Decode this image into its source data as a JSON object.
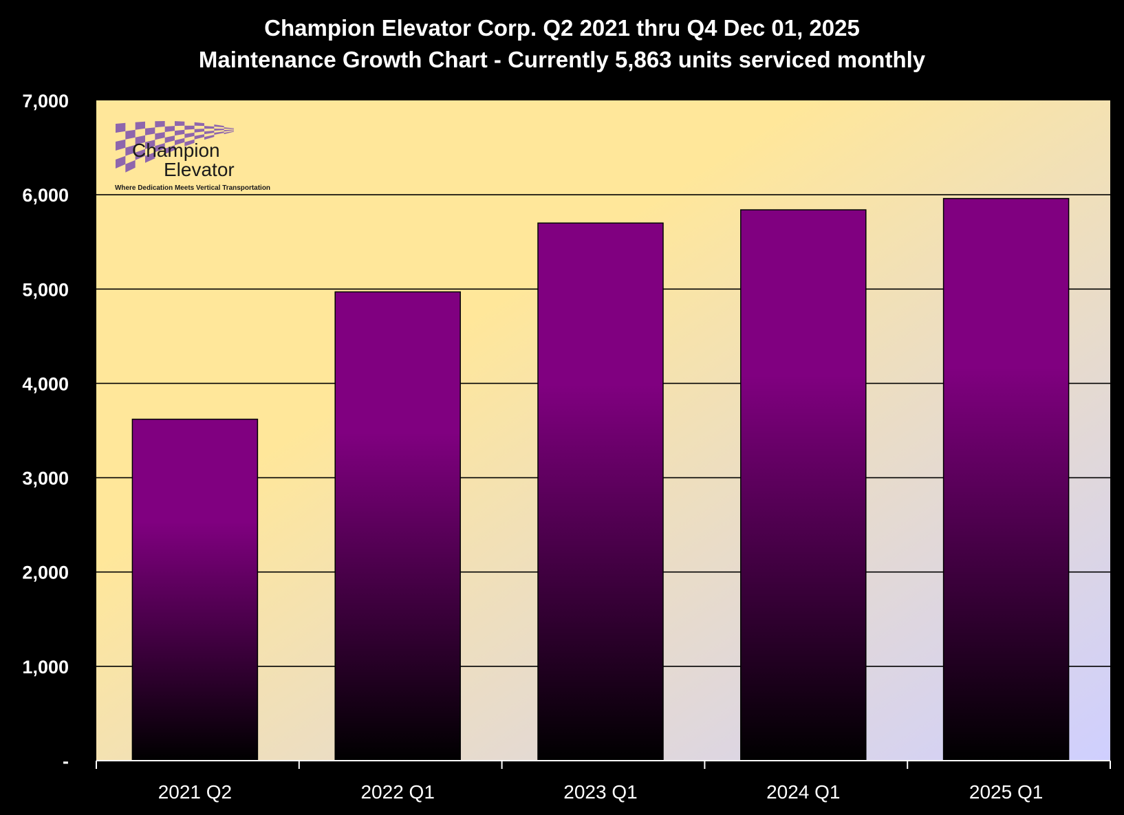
{
  "colors": {
    "background": "#000000",
    "plot_top_left": "#ffe79a",
    "plot_bottom_right": "#cfcfff",
    "bar_top": "#800080",
    "bar_bottom": "#000000",
    "gridline": "#000000",
    "logo_purple": "#7a4fb0"
  },
  "logo": {
    "word1": "Champion",
    "word2": "Elevator",
    "tagline": "Where Dedication Meets Vertical Transportation"
  },
  "chart_data": {
    "type": "bar",
    "title": "Champion Elevator  Corp.  Q2 2021 thru Q4 Dec 01, 2025",
    "subtitle": "Maintenance Growth Chart - Currently 5,863 units serviced monthly",
    "categories": [
      "2021 Q2",
      "2022 Q1",
      "2023 Q1",
      "2024 Q1",
      "2025 Q1"
    ],
    "values": [
      3620,
      4970,
      5700,
      5840,
      5960
    ],
    "ylim": [
      0,
      7000
    ],
    "yticks": [
      0,
      1000,
      2000,
      3000,
      4000,
      5000,
      6000,
      7000
    ],
    "ytick_labels": [
      "-",
      "1,000",
      "2,000",
      "3,000",
      "4,000",
      "5,000",
      "6,000",
      "7,000"
    ],
    "grid": true,
    "xlabel": "",
    "ylabel": ""
  }
}
